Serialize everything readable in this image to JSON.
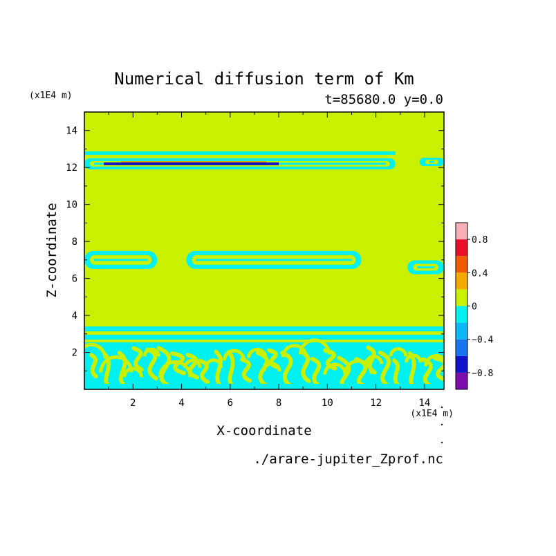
{
  "chart_data": {
    "type": "heatmap",
    "title": "Numerical diffusion term of Km",
    "subtitle": "t=85680.0 y=0.0",
    "xlabel": "X-coordinate",
    "ylabel": "Z-coordinate",
    "x_unit": "(x1E4 m)",
    "y_unit": "(x1E4 m)",
    "source_file": "./arare-jupiter_Zprof.nc",
    "xlim": [
      0,
      14.8
    ],
    "ylim": [
      0,
      15
    ],
    "x_ticks": [
      2,
      4,
      6,
      8,
      10,
      12,
      14
    ],
    "y_ticks": [
      2,
      4,
      6,
      8,
      10,
      12,
      14
    ],
    "background_level": "0",
    "colorbar": {
      "levels": [
        -1.0,
        -0.8,
        -0.6,
        -0.4,
        -0.2,
        0,
        0.2,
        0.4,
        0.6,
        0.8,
        1.0
      ],
      "colors": [
        "#7b0ea8",
        "#0f12c8",
        "#1a74f0",
        "#0cb8f5",
        "#00f0f0",
        "#c8f000",
        "#f4a800",
        "#f05a00",
        "#e8102a",
        "#f8b0b8"
      ],
      "tick_labels": [
        {
          "value": -0.8,
          "label": "−0.8"
        },
        {
          "value": -0.4,
          "label": "−0.4"
        },
        {
          "value": 0,
          "label": "0"
        },
        {
          "value": 0.4,
          "label": "0.4"
        },
        {
          "value": 0.8,
          "label": "0.8"
        }
      ]
    },
    "features": [
      {
        "name": "upper-band",
        "z": 12.2,
        "x": [
          0,
          12.8
        ],
        "value": -0.2
      },
      {
        "name": "upper-band-core",
        "z": 12.2,
        "x": [
          0.8,
          8.0
        ],
        "value": -0.8
      },
      {
        "name": "upper-right-blob",
        "z": 12.3,
        "x": [
          13.8,
          14.8
        ],
        "value": -0.2
      },
      {
        "name": "mid-left-cell",
        "z": 7.0,
        "x": [
          0,
          3.0
        ],
        "value": -0.2
      },
      {
        "name": "mid-center-cell",
        "z": 7.0,
        "x": [
          4.2,
          11.4
        ],
        "value": -0.2
      },
      {
        "name": "mid-right-cell",
        "z": 6.6,
        "x": [
          13.3,
          14.8
        ],
        "value": -0.2
      },
      {
        "name": "lower-layer",
        "z": [
          0,
          3.4
        ],
        "x": [
          0,
          14.8
        ],
        "value": -0.2
      }
    ]
  }
}
